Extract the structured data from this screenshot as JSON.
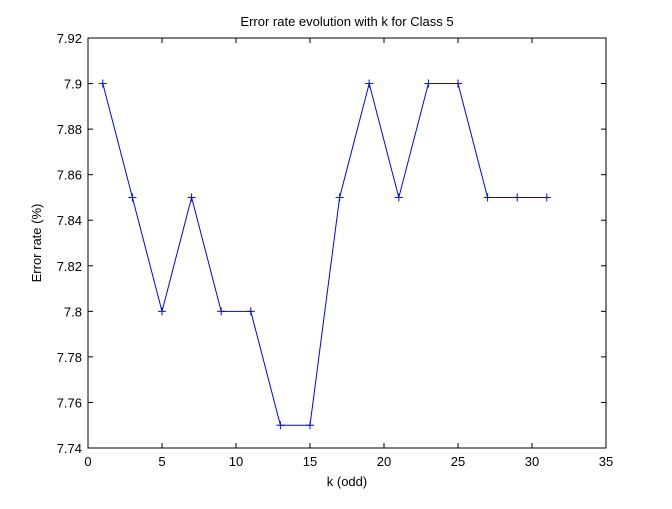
{
  "chart_data": {
    "type": "line",
    "title": "Error rate evolution with k for Class 5",
    "xlabel": "k (odd)",
    "ylabel": "Error rate (%)",
    "xlim": [
      0,
      35
    ],
    "ylim": [
      7.74,
      7.92
    ],
    "xticks": [
      0,
      5,
      10,
      15,
      20,
      25,
      30,
      35
    ],
    "yticks": [
      7.74,
      7.76,
      7.78,
      7.8,
      7.82,
      7.84,
      7.86,
      7.88,
      7.9,
      7.92
    ],
    "xtick_labels": [
      "0",
      "5",
      "10",
      "15",
      "20",
      "25",
      "30",
      "35"
    ],
    "ytick_labels": [
      "7.74",
      "7.76",
      "7.78",
      "7.8",
      "7.82",
      "7.84",
      "7.86",
      "7.88",
      "7.9",
      "7.92"
    ],
    "grid": false,
    "marker": "+",
    "color": "#0000ff",
    "series": [
      {
        "x": [
          1,
          3,
          5,
          7,
          9,
          11,
          13,
          15,
          17,
          19,
          21,
          23,
          25,
          27,
          29,
          31
        ],
        "y": [
          7.9,
          7.85,
          7.8,
          7.85,
          7.8,
          7.8,
          7.75,
          7.75,
          7.85,
          7.9,
          7.85,
          7.9,
          7.9,
          7.85,
          7.85,
          7.85
        ]
      }
    ]
  }
}
